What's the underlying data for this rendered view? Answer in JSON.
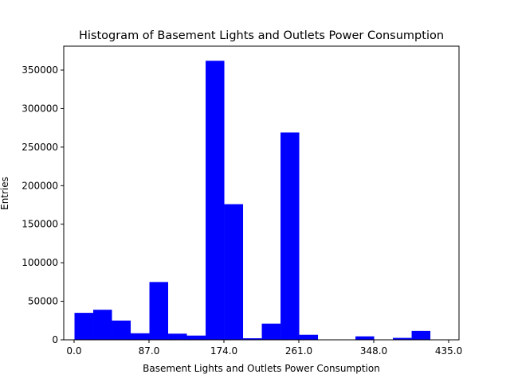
{
  "chart_data": {
    "type": "bar",
    "title": "Histogram of Basement Lights and Outlets Power Consumption",
    "xlabel": "Basement Lights and Outlets Power Consumption",
    "ylabel": "Entries",
    "xlim": [
      -12,
      447
    ],
    "ylim": [
      0,
      381000
    ],
    "x_ticks": [
      0,
      87,
      174,
      261,
      348,
      435
    ],
    "x_tick_labels": [
      "0.0",
      "87.0",
      "174.0",
      "261.0",
      "348.0",
      "435.0"
    ],
    "y_ticks": [
      0,
      50000,
      100000,
      150000,
      200000,
      250000,
      300000,
      350000
    ],
    "y_tick_labels": [
      "0",
      "50000",
      "100000",
      "150000",
      "200000",
      "250000",
      "300000",
      "350000"
    ],
    "bar_color": "#0000ff",
    "grid": false,
    "bin_edges": [
      0.5,
      22.25,
      44.0,
      65.75,
      87.5,
      109.25,
      131.0,
      152.75,
      174.5,
      196.25,
      218.0,
      239.75,
      261.5,
      283.25,
      305.0,
      326.75,
      348.5,
      370.25,
      392.0,
      413.75,
      435.5
    ],
    "values": [
      35000,
      39000,
      25000,
      8500,
      75000,
      8000,
      5500,
      362000,
      176000,
      2000,
      21000,
      269000,
      6500,
      0,
      0,
      4500,
      0,
      2500,
      11500,
      0
    ]
  }
}
